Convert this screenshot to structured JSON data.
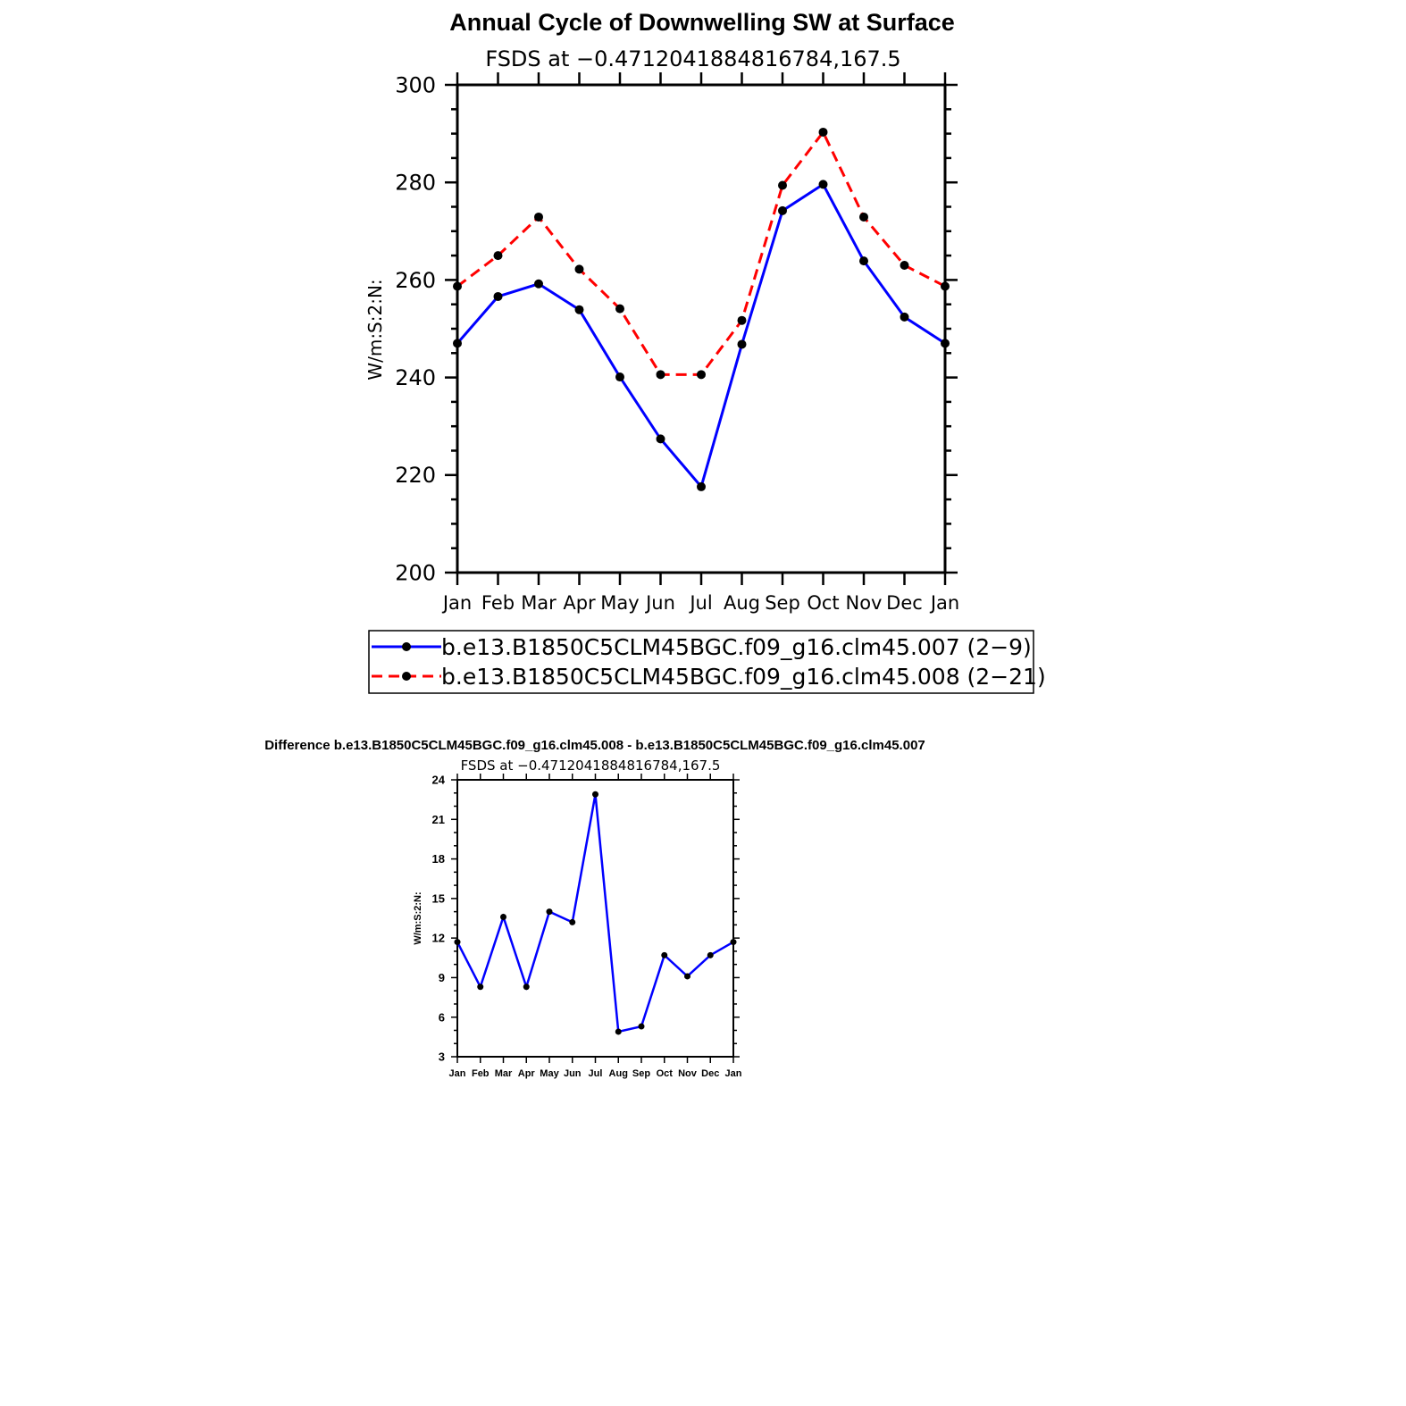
{
  "colors": {
    "series1": "#0000ff",
    "series2": "#ff0000",
    "marker": "#000000",
    "axis": "#000000"
  },
  "chart_data": [
    {
      "type": "line",
      "title": "Annual Cycle of Downwelling SW at Surface",
      "subtitle": "FSDS at −0.4712041884816784,167.5",
      "xlabel": "",
      "ylabel": "W/m:S:2:N:",
      "categories": [
        "Jan",
        "Feb",
        "Mar",
        "Apr",
        "May",
        "Jun",
        "Jul",
        "Aug",
        "Sep",
        "Oct",
        "Nov",
        "Dec",
        "Jan"
      ],
      "ylim": [
        200,
        300
      ],
      "yticks": [
        200,
        220,
        240,
        260,
        280,
        300
      ],
      "legend_position": "bottom",
      "series": [
        {
          "name": "b.e13.B1850C5CLM45BGC.f09_g16.clm45.007 (2−9)",
          "style": "solid",
          "color": "#0000ff",
          "values": [
            247.0,
            256.6,
            259.2,
            253.9,
            240.1,
            227.4,
            217.6,
            246.8,
            274.2,
            279.6,
            263.9,
            252.4,
            247.0
          ]
        },
        {
          "name": "b.e13.B1850C5CLM45BGC.f09_g16.clm45.008 (2−21)",
          "style": "dashed",
          "color": "#ff0000",
          "values": [
            258.7,
            265.0,
            272.9,
            262.2,
            254.1,
            240.6,
            240.6,
            251.7,
            279.4,
            290.3,
            272.9,
            263.0,
            258.7
          ]
        }
      ]
    },
    {
      "type": "line",
      "title": "Difference b.e13.B1850C5CLM45BGC.f09_g16.clm45.008 - b.e13.B1850C5CLM45BGC.f09_g16.clm45.007",
      "subtitle": "FSDS at −0.4712041884816784,167.5",
      "xlabel": "",
      "ylabel": "W/m:S:2:N:",
      "categories": [
        "Jan",
        "Feb",
        "Mar",
        "Apr",
        "May",
        "Jun",
        "Jul",
        "Aug",
        "Sep",
        "Oct",
        "Nov",
        "Dec",
        "Jan"
      ],
      "ylim": [
        3,
        24
      ],
      "yticks": [
        3,
        6,
        9,
        12,
        15,
        18,
        21,
        24
      ],
      "series": [
        {
          "style": "solid",
          "color": "#0000ff",
          "values": [
            11.7,
            8.3,
            13.6,
            8.3,
            14.0,
            13.2,
            22.9,
            4.9,
            5.3,
            10.7,
            9.1,
            10.7,
            11.7
          ]
        }
      ]
    }
  ]
}
